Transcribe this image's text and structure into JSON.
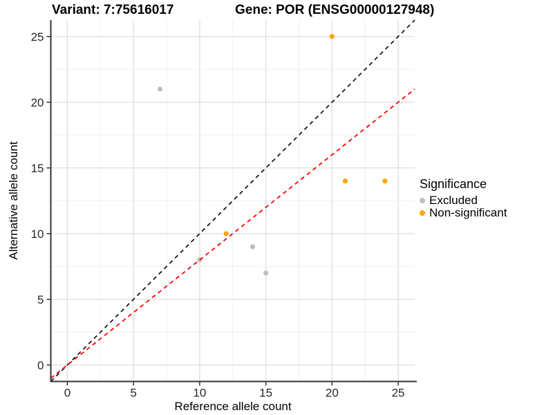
{
  "chart_data": {
    "type": "scatter",
    "title_left": "Variant: 7:75616017",
    "title_right": "Gene: POR (ENSG00000127948)",
    "xlabel": "Reference allele count",
    "ylabel": "Alternative allele count",
    "xlim": [
      -1.25,
      26.25
    ],
    "ylim": [
      -1.25,
      26.25
    ],
    "x_ticks": [
      0,
      5,
      10,
      15,
      20,
      25
    ],
    "y_ticks": [
      0,
      5,
      10,
      15,
      20,
      25
    ],
    "x_minor_ticks": [
      2.5,
      7.5,
      12.5,
      17.5,
      22.5
    ],
    "y_minor_ticks": [
      2.5,
      7.5,
      12.5,
      17.5,
      22.5
    ],
    "grid": true,
    "legend": {
      "title": "Significance",
      "position": "right"
    },
    "series": [
      {
        "name": "Excluded",
        "color": "#BEBEBE",
        "points": [
          [
            7,
            21
          ],
          [
            10,
            8
          ],
          [
            14,
            9
          ],
          [
            15,
            7
          ]
        ]
      },
      {
        "name": "Non-significant",
        "color": "#FFA500",
        "points": [
          [
            12,
            10
          ],
          [
            20,
            25
          ],
          [
            21,
            14
          ],
          [
            24,
            14
          ]
        ]
      }
    ],
    "lines": [
      {
        "name": "identity-line",
        "color": "#1A1A1A",
        "slope": 1,
        "intercept": 0,
        "dashed": true
      },
      {
        "name": "fit-line",
        "color": "#FF0000",
        "slope": 0.8,
        "intercept": 0,
        "dashed": true
      }
    ],
    "colors": {
      "grid_major": "#E3E3E3",
      "grid_minor": "#F0F0F0",
      "axis_line": "#333333",
      "tick_text": "#262626"
    }
  }
}
